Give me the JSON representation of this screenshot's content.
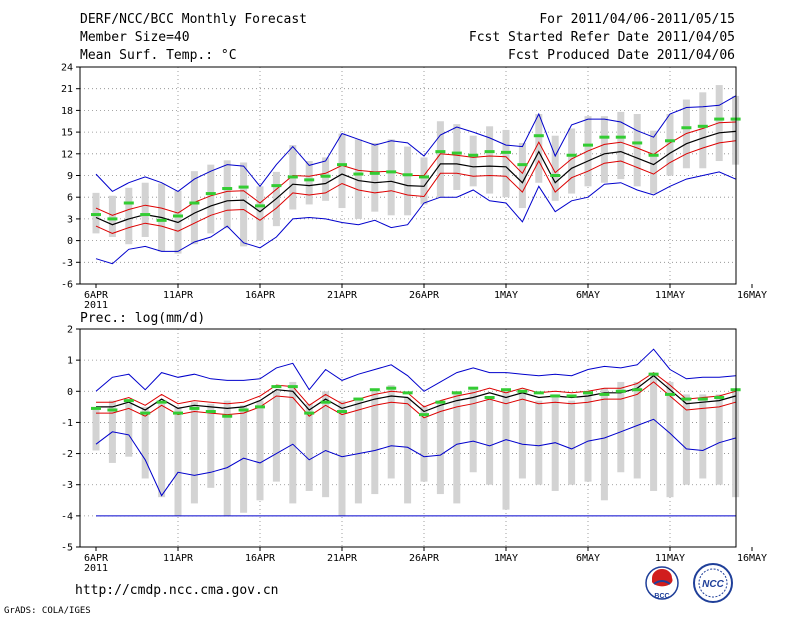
{
  "header": {
    "left": [
      "DERF/NCC/BCC Monthly Forecast",
      "Member Size=40",
      "Mean Surf. Temp.: °C"
    ],
    "right": [
      "For 2011/04/06-2011/05/15",
      "Fcst Started Refer Date 2011/04/05",
      "Fcst Produced Date 2011/04/06"
    ]
  },
  "footer": {
    "url": "http://cmdp.ncc.cma.gov.cn",
    "credit": "GrADS: COLA/IGES"
  },
  "logos": {
    "bcc": "BCC",
    "ncc": "NCC"
  },
  "colors": {
    "box": "#d3d3d3",
    "mean": "#000000",
    "spread": "#dd0000",
    "extreme": "#0000cc",
    "obs": "#33cc33",
    "grid": "#888888"
  },
  "chart_data": [
    {
      "type": "line",
      "title": "Mean Surf. Temp.: °C",
      "xlabel": "",
      "ylabel": "",
      "ylim": [
        -6,
        24
      ],
      "yticks": [
        "24",
        "21",
        "18",
        "15",
        "12",
        "9",
        "6",
        "3",
        "0",
        "-3",
        "-6"
      ],
      "xticks": [
        "6APR",
        "11APR",
        "16APR",
        "21APR",
        "26APR",
        "1MAY",
        "6MAY",
        "11MAY",
        "16MAY"
      ],
      "xtick_year": "2011",
      "days": 40,
      "series": [
        {
          "name": "ensemble mean",
          "values": [
            3.2,
            2.2,
            3.0,
            3.6,
            3.2,
            2.5,
            3.8,
            4.8,
            5.5,
            5.6,
            4.0,
            5.8,
            7.8,
            7.6,
            7.9,
            9.2,
            8.3,
            8.0,
            8.2,
            7.6,
            7.5,
            10.6,
            10.6,
            10.2,
            10.3,
            10.2,
            8.0,
            12.3,
            8.0,
            10.0,
            11.0,
            12.0,
            12.3,
            11.4,
            10.5,
            12.1,
            13.4,
            14.2,
            14.9,
            15.1
          ]
        },
        {
          "name": "upper spread",
          "values": [
            4.5,
            3.5,
            4.3,
            4.9,
            4.5,
            3.8,
            5.3,
            6.2,
            6.8,
            6.9,
            5.2,
            7.1,
            9.0,
            8.9,
            9.3,
            10.4,
            9.7,
            9.5,
            9.6,
            9.0,
            9.0,
            12.0,
            11.8,
            11.5,
            11.7,
            11.6,
            9.3,
            13.6,
            9.4,
            11.3,
            12.4,
            13.3,
            13.6,
            12.8,
            11.9,
            13.5,
            14.8,
            15.5,
            16.3,
            16.4
          ]
        },
        {
          "name": "lower spread",
          "values": [
            2.0,
            1.0,
            1.8,
            2.4,
            2.0,
            1.3,
            2.4,
            3.5,
            4.2,
            4.3,
            2.8,
            4.5,
            6.6,
            6.3,
            6.6,
            7.9,
            7.0,
            6.6,
            6.9,
            6.3,
            6.1,
            9.3,
            9.3,
            8.9,
            9.0,
            8.9,
            6.7,
            11.0,
            6.7,
            8.7,
            9.6,
            10.7,
            11.0,
            10.1,
            9.2,
            10.8,
            12.0,
            12.8,
            13.5,
            13.8
          ]
        },
        {
          "name": "maximum",
          "values": [
            9.2,
            6.8,
            8.0,
            8.8,
            8.0,
            6.8,
            8.5,
            9.6,
            10.5,
            10.3,
            7.5,
            10.5,
            13.0,
            10.4,
            11.0,
            14.8,
            14.0,
            13.2,
            13.8,
            13.5,
            11.7,
            14.6,
            15.7,
            15.0,
            14.2,
            13.2,
            13.0,
            17.5,
            11.7,
            16.0,
            16.8,
            16.8,
            16.4,
            15.2,
            14.3,
            17.5,
            18.4,
            18.5,
            18.7,
            20.0
          ]
        },
        {
          "name": "minimum",
          "values": [
            -2.5,
            -3.2,
            -1.2,
            -0.8,
            -1.5,
            -1.5,
            -0.2,
            0.5,
            2.0,
            -0.3,
            -1.0,
            0.5,
            3.0,
            3.2,
            3.0,
            2.5,
            2.2,
            2.8,
            1.8,
            2.2,
            5.2,
            6.0,
            6.0,
            7.0,
            5.5,
            5.2,
            2.6,
            7.5,
            4.0,
            5.5,
            6.0,
            7.8,
            8.0,
            7.0,
            6.3,
            7.5,
            8.5,
            9.0,
            9.5,
            8.5
          ]
        },
        {
          "name": "box top",
          "values": [
            6.6,
            6.2,
            7.3,
            8.0,
            7.9,
            6.9,
            9.6,
            10.5,
            11.1,
            10.8,
            7.5,
            9.5,
            13.2,
            11.0,
            11.5,
            14.8,
            14.0,
            13.5,
            14.0,
            13.0,
            11.5,
            16.5,
            16.1,
            14.5,
            15.8,
            15.3,
            13.5,
            17.5,
            14.5,
            15.5,
            17.2,
            17.2,
            17.8,
            17.5,
            15.2,
            17.5,
            19.5,
            20.5,
            21.5,
            20.0
          ]
        },
        {
          "name": "box bottom",
          "values": [
            1.0,
            0.5,
            -0.5,
            0.5,
            -1.5,
            -1.8,
            -0.5,
            1.0,
            1.7,
            -0.8,
            0.0,
            2.0,
            4.3,
            5.0,
            5.5,
            4.5,
            3.0,
            4.0,
            3.5,
            3.5,
            5.0,
            6.0,
            7.0,
            7.5,
            6.5,
            6.0,
            4.5,
            8.0,
            5.5,
            6.5,
            7.5,
            8.0,
            8.5,
            7.5,
            6.5,
            9.0,
            10.0,
            10.0,
            11.0,
            10.5
          ]
        },
        {
          "name": "observed (green)",
          "values": [
            3.6,
            3.0,
            5.2,
            3.6,
            2.8,
            3.4,
            5.2,
            6.5,
            7.2,
            7.4,
            4.8,
            7.6,
            8.8,
            8.4,
            8.9,
            10.5,
            9.2,
            9.3,
            9.5,
            9.1,
            8.8,
            12.3,
            12.1,
            11.8,
            12.3,
            12.2,
            10.5,
            14.5,
            9.0,
            11.8,
            13.2,
            14.3,
            14.3,
            13.5,
            11.8,
            13.8,
            15.6,
            15.8,
            16.8,
            16.8
          ]
        }
      ]
    },
    {
      "type": "line",
      "title": "Prec.: log(mm/d)",
      "xlabel": "",
      "ylabel": "",
      "ylim": [
        -5,
        2
      ],
      "yticks": [
        "2",
        "1",
        "0",
        "-1",
        "-2",
        "-3",
        "-4",
        "-5"
      ],
      "xticks": [
        "6APR",
        "11APR",
        "16APR",
        "21APR",
        "26APR",
        "1MAY",
        "6MAY",
        "11MAY",
        "16MAY"
      ],
      "xtick_year": "2011",
      "days": 40,
      "series": [
        {
          "name": "ensemble mean",
          "values": [
            -0.5,
            -0.5,
            -0.35,
            -0.6,
            -0.25,
            -0.55,
            -0.45,
            -0.5,
            -0.55,
            -0.5,
            -0.3,
            0.05,
            0.0,
            -0.6,
            -0.25,
            -0.55,
            -0.4,
            -0.25,
            -0.15,
            -0.2,
            -0.65,
            -0.45,
            -0.3,
            -0.2,
            -0.05,
            -0.2,
            -0.05,
            -0.2,
            -0.15,
            -0.2,
            -0.15,
            -0.05,
            -0.05,
            0.1,
            0.5,
            0.05,
            -0.4,
            -0.35,
            -0.3,
            -0.15
          ]
        },
        {
          "name": "upper spread",
          "values": [
            -0.35,
            -0.35,
            -0.2,
            -0.45,
            -0.1,
            -0.4,
            -0.3,
            -0.35,
            -0.4,
            -0.35,
            -0.15,
            0.2,
            0.15,
            -0.45,
            -0.1,
            -0.4,
            -0.25,
            -0.1,
            0.0,
            -0.05,
            -0.5,
            -0.3,
            -0.15,
            -0.05,
            0.1,
            -0.05,
            0.1,
            -0.05,
            0.0,
            -0.05,
            0.0,
            0.1,
            0.1,
            0.25,
            0.6,
            0.2,
            -0.25,
            -0.2,
            -0.15,
            0.0
          ]
        },
        {
          "name": "lower spread",
          "values": [
            -0.7,
            -0.7,
            -0.55,
            -0.8,
            -0.45,
            -0.75,
            -0.65,
            -0.7,
            -0.75,
            -0.7,
            -0.5,
            -0.15,
            -0.2,
            -0.8,
            -0.45,
            -0.75,
            -0.6,
            -0.45,
            -0.35,
            -0.4,
            -0.85,
            -0.65,
            -0.5,
            -0.4,
            -0.25,
            -0.4,
            -0.25,
            -0.4,
            -0.35,
            -0.4,
            -0.35,
            -0.25,
            -0.25,
            -0.1,
            0.3,
            -0.15,
            -0.6,
            -0.55,
            -0.5,
            -0.35
          ]
        },
        {
          "name": "maximum",
          "values": [
            0.0,
            0.45,
            0.55,
            0.05,
            0.6,
            0.45,
            0.55,
            0.4,
            0.35,
            0.35,
            0.4,
            0.75,
            0.9,
            0.05,
            0.7,
            0.35,
            0.55,
            0.7,
            0.85,
            0.5,
            0.0,
            0.3,
            0.6,
            0.75,
            0.6,
            0.6,
            0.55,
            0.5,
            0.55,
            0.5,
            0.7,
            0.8,
            0.75,
            0.85,
            1.35,
            0.7,
            0.4,
            0.45,
            0.45,
            0.5
          ]
        },
        {
          "name": "minimum",
          "values": [
            -1.7,
            -1.3,
            -1.4,
            -2.2,
            -3.35,
            -2.6,
            -2.7,
            -2.6,
            -2.45,
            -2.15,
            -2.3,
            -2.0,
            -1.7,
            -2.2,
            -1.9,
            -2.1,
            -2.0,
            -1.9,
            -1.75,
            -1.8,
            -2.1,
            -2.05,
            -1.7,
            -1.6,
            -1.75,
            -1.55,
            -1.7,
            -1.75,
            -1.65,
            -1.85,
            -1.6,
            -1.5,
            -1.3,
            -1.1,
            -0.9,
            -1.35,
            -1.85,
            -1.9,
            -1.65,
            -1.5
          ]
        },
        {
          "name": "box top",
          "values": [
            -0.6,
            -0.3,
            -0.4,
            -0.5,
            -0.4,
            -0.5,
            -0.35,
            -0.4,
            -0.3,
            -0.45,
            -0.3,
            0.0,
            0.3,
            -0.4,
            0.0,
            -0.3,
            -0.2,
            0.0,
            0.2,
            -0.2,
            -0.5,
            -0.3,
            0.0,
            0.1,
            -0.2,
            0.0,
            0.0,
            -0.3,
            -0.1,
            -0.3,
            0.0,
            0.1,
            0.3,
            0.3,
            0.6,
            0.3,
            -0.1,
            -0.1,
            -0.1,
            0.0
          ]
        },
        {
          "name": "box bottom",
          "values": [
            -1.9,
            -2.3,
            -2.1,
            -2.8,
            -3.4,
            -4.0,
            -3.6,
            -3.1,
            -4.0,
            -3.9,
            -3.5,
            -2.9,
            -3.6,
            -3.2,
            -3.4,
            -4.0,
            -3.6,
            -3.3,
            -2.8,
            -3.6,
            -2.9,
            -3.3,
            -3.6,
            -2.6,
            -3.0,
            -3.8,
            -2.8,
            -3.0,
            -3.2,
            -3.0,
            -2.9,
            -3.5,
            -2.6,
            -2.8,
            -3.2,
            -3.4,
            -3.0,
            -2.8,
            -3.0,
            -3.4
          ]
        },
        {
          "name": "observed (green)",
          "values": [
            -0.55,
            -0.6,
            -0.3,
            -0.7,
            -0.35,
            -0.7,
            -0.55,
            -0.65,
            -0.8,
            -0.6,
            -0.5,
            0.15,
            0.15,
            -0.7,
            -0.35,
            -0.65,
            -0.25,
            0.05,
            0.1,
            -0.05,
            -0.75,
            -0.35,
            -0.05,
            0.1,
            -0.2,
            0.05,
            0.0,
            -0.05,
            -0.15,
            -0.15,
            -0.05,
            -0.1,
            0.0,
            0.05,
            0.55,
            -0.1,
            -0.25,
            -0.25,
            -0.2,
            0.05
          ]
        }
      ]
    }
  ]
}
